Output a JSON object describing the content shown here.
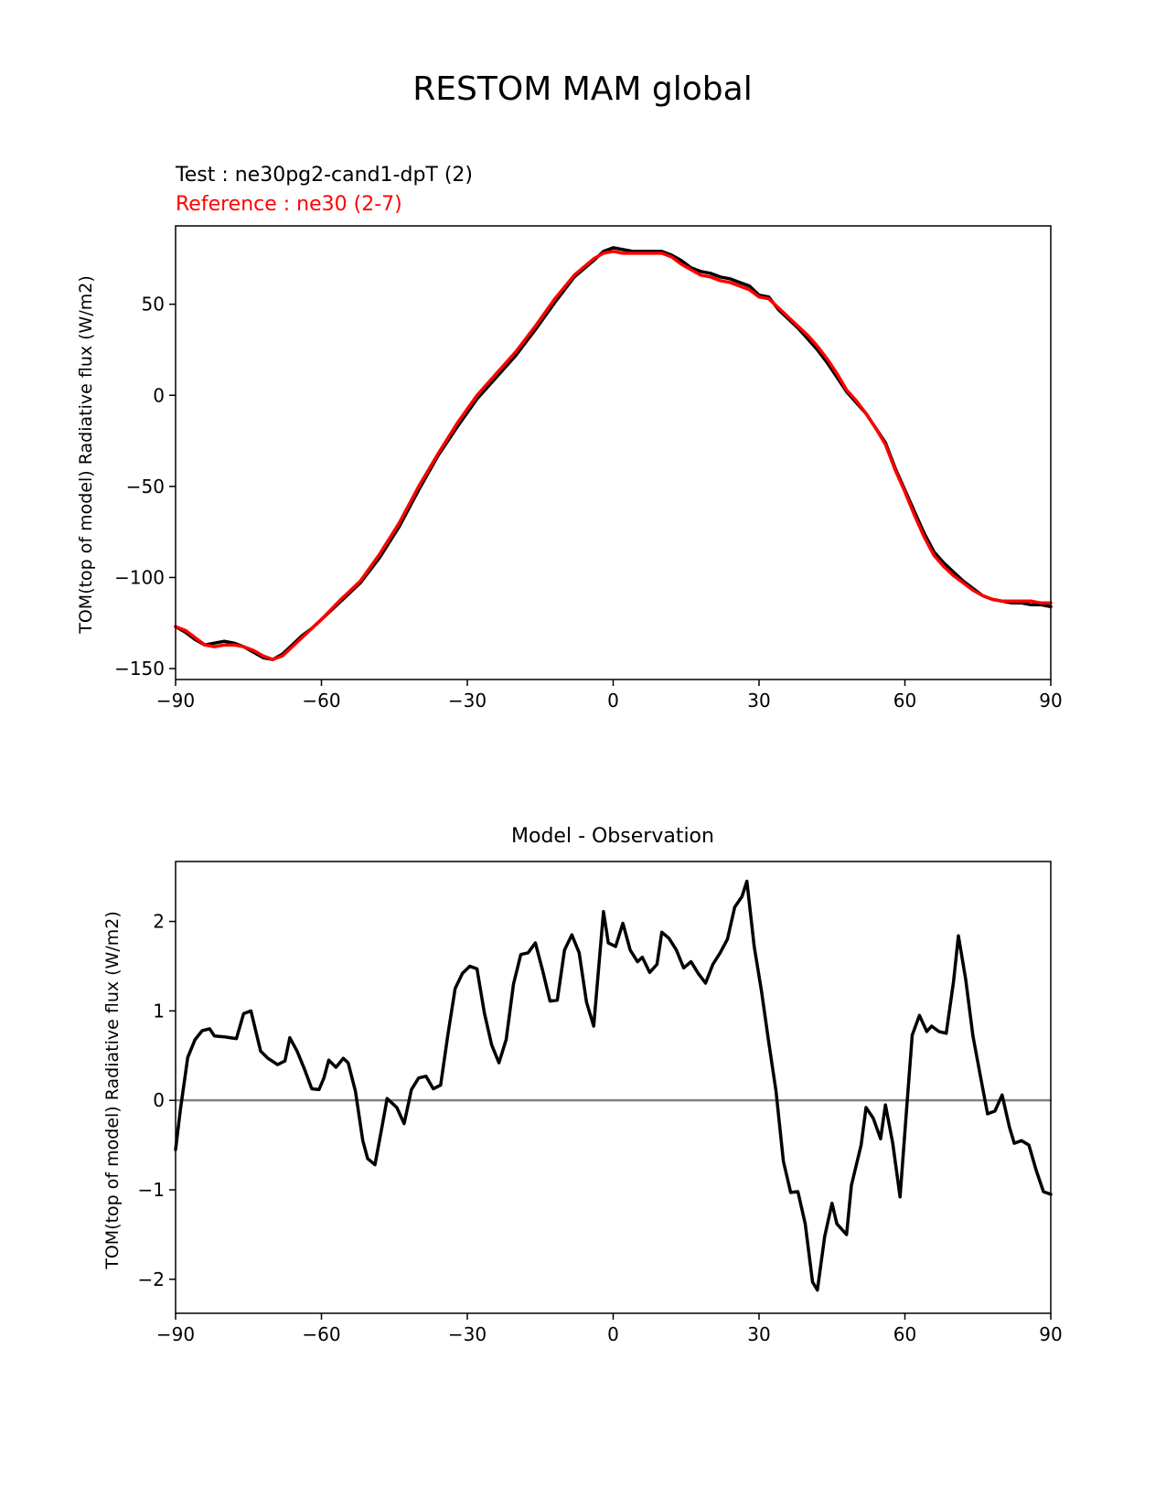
{
  "title": "RESTOM MAM global",
  "colors": {
    "test": "#000000",
    "reference": "#ff0000",
    "zero_line": "#808080",
    "axes": "#000000"
  },
  "chart_data": [
    {
      "type": "line",
      "subtitle_test": "Test : ne30pg2-cand1-dpT (2)",
      "subtitle_reference": "Reference : ne30 (2-7)",
      "xlabel": "",
      "ylabel": "TOM(top of model) Radiative flux (W/m2)",
      "xlim": [
        -90,
        90
      ],
      "ylim": [
        -156,
        93
      ],
      "xticks": [
        -90,
        -60,
        -30,
        0,
        30,
        60,
        90
      ],
      "xtick_labels": [
        "−90",
        "−60",
        "−30",
        "0",
        "30",
        "60",
        "90"
      ],
      "yticks": [
        -150,
        -100,
        -50,
        0,
        50
      ],
      "ytick_labels": [
        "−150",
        "−100",
        "−50",
        "0",
        "50"
      ],
      "series": [
        {
          "name": "Test : ne30pg2-cand1-dpT (2)",
          "color": "#000000",
          "x": [
            -90,
            -88,
            -86,
            -84,
            -82,
            -80,
            -78,
            -76,
            -74,
            -72,
            -70,
            -68,
            -66,
            -64,
            -62,
            -60,
            -56,
            -52,
            -48,
            -44,
            -40,
            -36,
            -32,
            -28,
            -24,
            -20,
            -16,
            -12,
            -8,
            -4,
            -2,
            0,
            2,
            4,
            6,
            8,
            10,
            12,
            14,
            16,
            18,
            20,
            22,
            24,
            26,
            28,
            30,
            32,
            34,
            36,
            38,
            40,
            42,
            44,
            46,
            48,
            50,
            52,
            54,
            56,
            58,
            60,
            62,
            64,
            66,
            68,
            70,
            72,
            74,
            76,
            78,
            80,
            82,
            84,
            86,
            88,
            90
          ],
          "values": [
            -127,
            -130,
            -134,
            -137,
            -136,
            -135,
            -136,
            -138,
            -141,
            -144,
            -145,
            -142,
            -137,
            -132,
            -128,
            -123,
            -113,
            -103,
            -89,
            -72,
            -52,
            -33,
            -17,
            -2,
            10,
            22,
            36,
            51,
            65,
            74,
            79,
            81,
            80,
            79,
            79,
            79,
            79,
            77,
            74,
            70,
            68,
            67,
            65,
            64,
            62,
            60,
            55,
            54,
            47,
            42,
            37,
            31,
            25,
            18,
            10,
            2,
            -4,
            -10,
            -18,
            -26,
            -40,
            -52,
            -64,
            -76,
            -86,
            -92,
            -97,
            -102,
            -106,
            -110,
            -112,
            -113,
            -114,
            -114,
            -115,
            -115,
            -116
          ]
        },
        {
          "name": "Reference : ne30 (2-7)",
          "color": "#ff0000",
          "x": [
            -90,
            -88,
            -86,
            -84,
            -82,
            -80,
            -78,
            -76,
            -74,
            -72,
            -70,
            -68,
            -66,
            -64,
            -62,
            -60,
            -56,
            -52,
            -48,
            -44,
            -40,
            -36,
            -32,
            -28,
            -24,
            -20,
            -16,
            -12,
            -8,
            -4,
            -2,
            0,
            2,
            4,
            6,
            8,
            10,
            12,
            14,
            16,
            18,
            20,
            22,
            24,
            26,
            28,
            30,
            32,
            34,
            36,
            38,
            40,
            42,
            44,
            46,
            48,
            50,
            52,
            54,
            56,
            58,
            60,
            62,
            64,
            66,
            68,
            70,
            72,
            74,
            76,
            78,
            80,
            82,
            84,
            86,
            88,
            90
          ],
          "values": [
            -127,
            -129,
            -133,
            -137,
            -138,
            -137,
            -137,
            -138,
            -140,
            -143,
            -145,
            -143,
            -138,
            -133,
            -128,
            -123,
            -112,
            -102,
            -87,
            -70,
            -50,
            -32,
            -15,
            0,
            12,
            24,
            38,
            53,
            66,
            75,
            78,
            79,
            78,
            78,
            78,
            78,
            78,
            76,
            72,
            69,
            66,
            65,
            63,
            62,
            60,
            58,
            54,
            53,
            48,
            43,
            38,
            33,
            27,
            20,
            12,
            3,
            -3,
            -10,
            -18,
            -27,
            -41,
            -53,
            -66,
            -78,
            -88,
            -94,
            -99,
            -103,
            -107,
            -110,
            -112,
            -113,
            -113,
            -113,
            -113,
            -114,
            -114
          ]
        }
      ]
    },
    {
      "type": "line",
      "title": "Model - Observation",
      "xlabel": "",
      "ylabel": "TOM(top of model) Radiative flux (W/m2)",
      "xlim": [
        -90,
        90
      ],
      "ylim": [
        -2.38,
        2.67
      ],
      "xticks": [
        -90,
        -60,
        -30,
        0,
        30,
        60,
        90
      ],
      "xtick_labels": [
        "−90",
        "−60",
        "−30",
        "0",
        "30",
        "60",
        "90"
      ],
      "yticks": [
        -2,
        -1,
        0,
        1,
        2
      ],
      "ytick_labels": [
        "−2",
        "−1",
        "0",
        "1",
        "2"
      ],
      "zero_line": 0,
      "series": [
        {
          "name": "Model - Observation",
          "color": "#000000",
          "x": [
            -90,
            -89,
            -87.5,
            -86,
            -84.5,
            -83,
            -82,
            -80,
            -77.5,
            -76,
            -74.5,
            -72.5,
            -71,
            -69,
            -67.5,
            -66.5,
            -65,
            -63.5,
            -62,
            -60.5,
            -59.5,
            -58.5,
            -57,
            -55.5,
            -54.5,
            -53,
            -51.5,
            -50.5,
            -49,
            -47.5,
            -46.5,
            -44.5,
            -43,
            -41.5,
            -40,
            -38.5,
            -37,
            -35.5,
            -34,
            -32.5,
            -31,
            -29.5,
            -28,
            -26.5,
            -25,
            -23.5,
            -22,
            -20.5,
            -19,
            -17.5,
            -16,
            -14.5,
            -13,
            -11.5,
            -10,
            -8.5,
            -7,
            -5.5,
            -4,
            -2,
            -1,
            0.5,
            2,
            3.5,
            5,
            6,
            7.5,
            9,
            10,
            11.5,
            13,
            14.5,
            16,
            17.5,
            19,
            20.5,
            22,
            23.5,
            25,
            26.5,
            27.5,
            29,
            30.5,
            32,
            33.5,
            35,
            36.5,
            38,
            39.5,
            41,
            42,
            43.5,
            45,
            46,
            48,
            49,
            51,
            52,
            53.5,
            55,
            56,
            57.5,
            59,
            60,
            61.5,
            63,
            64.5,
            65.5,
            67,
            68.5,
            70,
            71,
            72.5,
            74,
            75.5,
            77,
            78.5,
            80,
            81.5,
            82.5,
            84,
            85.5,
            87,
            88.5,
            90
          ],
          "values": [
            -0.55,
            -0.1,
            0.48,
            0.68,
            0.78,
            0.8,
            0.72,
            0.71,
            0.69,
            0.97,
            1.0,
            0.55,
            0.47,
            0.4,
            0.44,
            0.7,
            0.55,
            0.35,
            0.13,
            0.12,
            0.25,
            0.45,
            0.37,
            0.47,
            0.42,
            0.1,
            -0.45,
            -0.65,
            -0.72,
            -0.28,
            0.02,
            -0.08,
            -0.26,
            0.12,
            0.25,
            0.27,
            0.13,
            0.17,
            0.73,
            1.25,
            1.42,
            1.5,
            1.47,
            0.98,
            0.62,
            0.42,
            0.68,
            1.3,
            1.63,
            1.65,
            1.76,
            1.45,
            1.11,
            1.12,
            1.68,
            1.85,
            1.65,
            1.1,
            0.83,
            2.11,
            1.76,
            1.72,
            1.98,
            1.68,
            1.55,
            1.6,
            1.43,
            1.52,
            1.88,
            1.81,
            1.68,
            1.48,
            1.55,
            1.42,
            1.31,
            1.52,
            1.65,
            1.8,
            2.16,
            2.28,
            2.45,
            1.72,
            1.22,
            0.65,
            0.1,
            -0.68,
            -1.03,
            -1.02,
            -1.38,
            -2.03,
            -2.12,
            -1.52,
            -1.15,
            -1.38,
            -1.5,
            -0.95,
            -0.5,
            -0.08,
            -0.2,
            -0.43,
            -0.05,
            -0.48,
            -1.08,
            -0.35,
            0.73,
            0.95,
            0.77,
            0.83,
            0.77,
            0.75,
            1.33,
            1.84,
            1.35,
            0.72,
            0.28,
            -0.15,
            -0.12,
            0.06,
            -0.3,
            -0.48,
            -0.45,
            -0.5,
            -0.78,
            -1.02,
            -1.05
          ]
        }
      ]
    }
  ]
}
